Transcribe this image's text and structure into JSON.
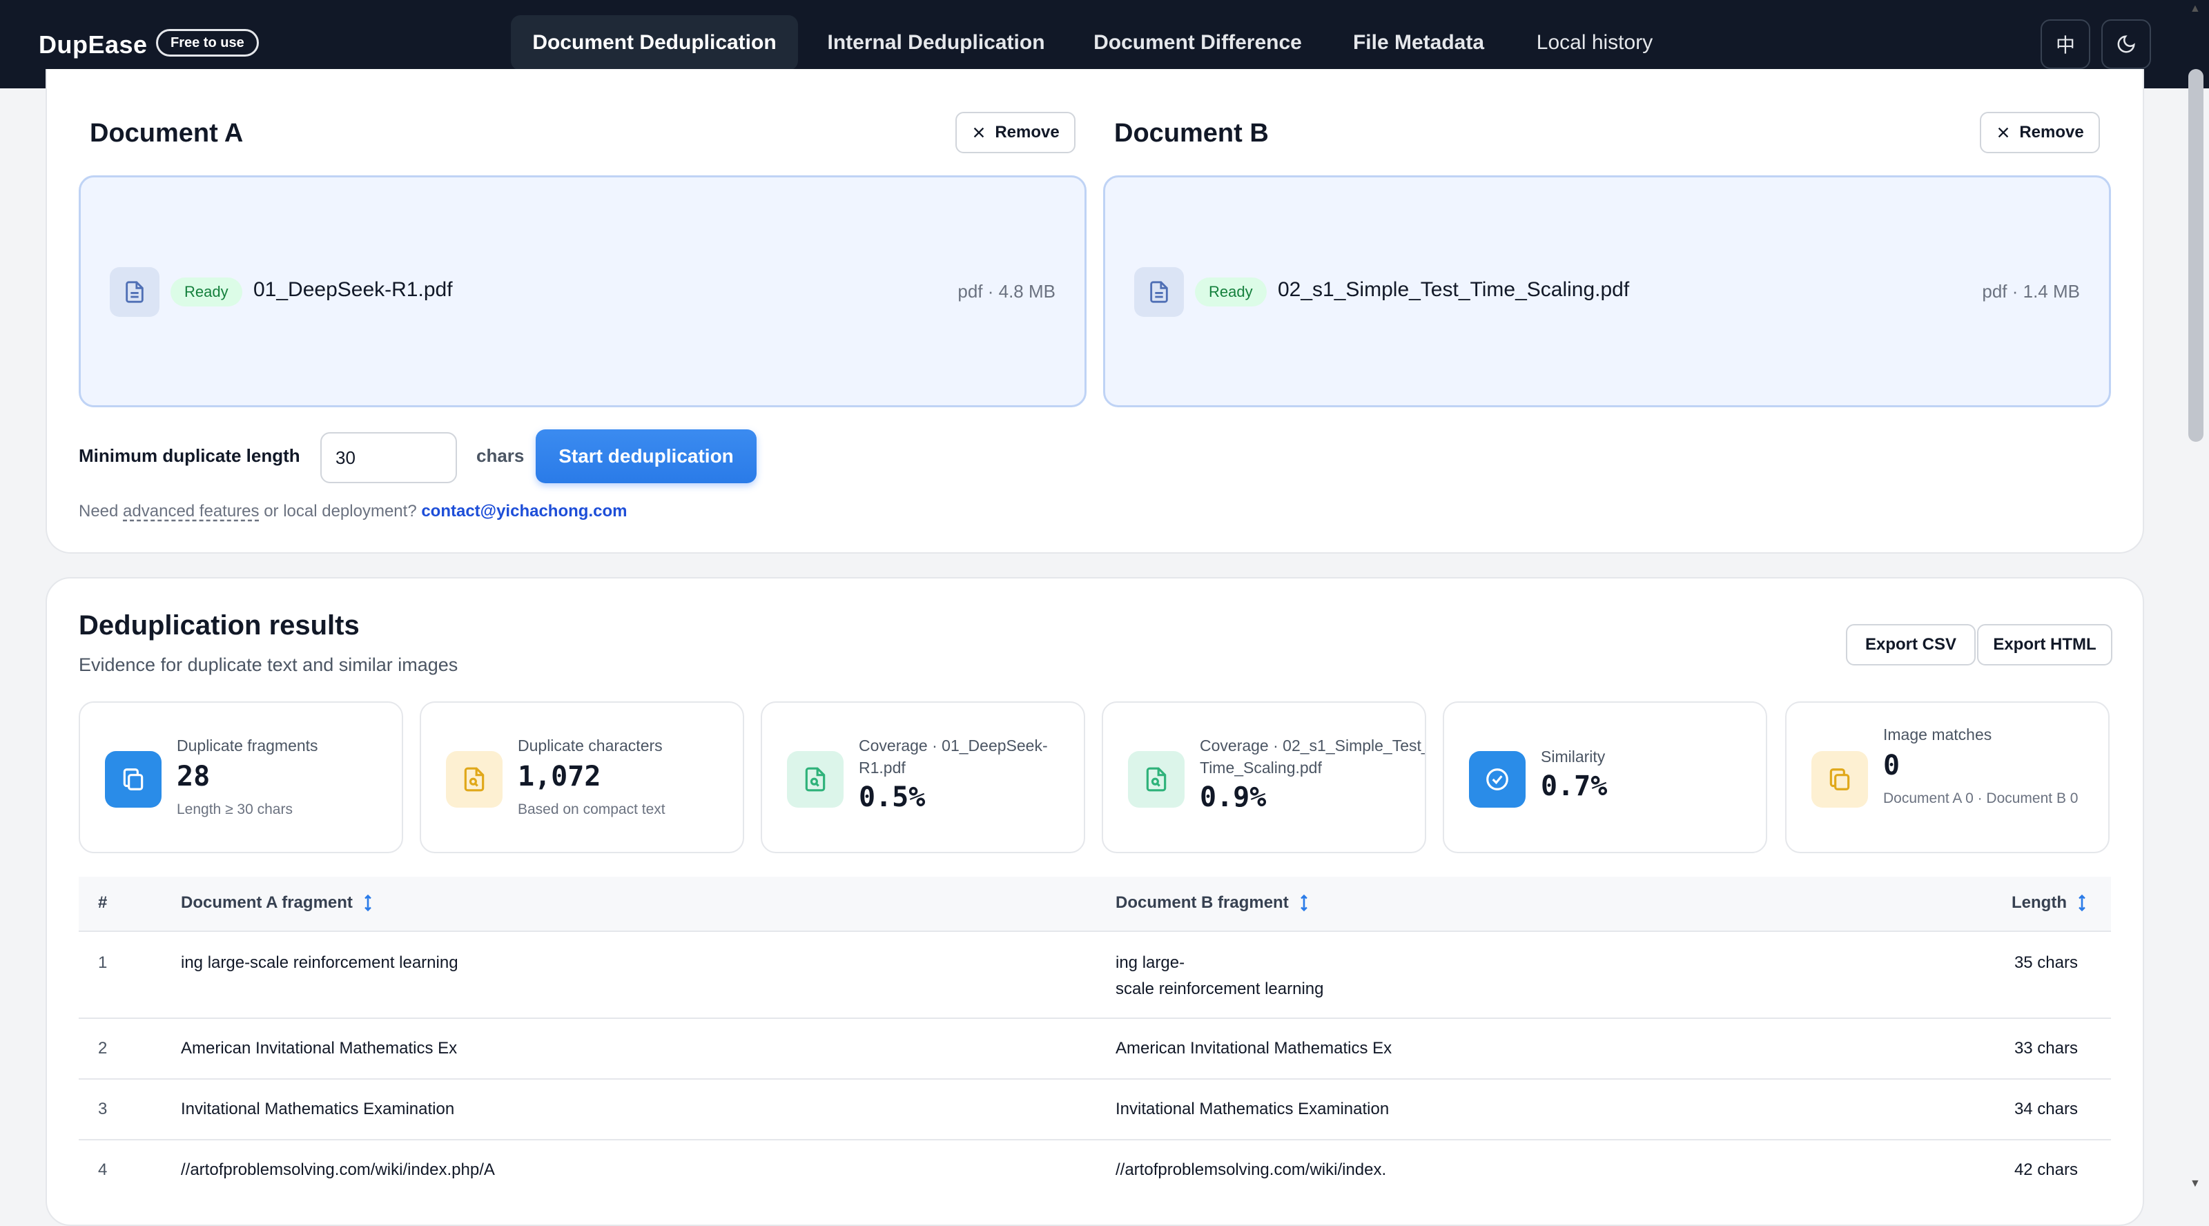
{
  "app": {
    "brand": "DupEase",
    "badge": "Free to use",
    "tabs": [
      "Document Deduplication",
      "Internal Deduplication",
      "Document Difference",
      "File Metadata",
      "Local history"
    ],
    "lang_toggle": "中",
    "colors": {
      "nav_bg": "#111827",
      "accent": "#2a7be8",
      "ready_bg": "#dcfce7",
      "ready_text": "#15803d"
    }
  },
  "docs": {
    "a": {
      "title": "Document A",
      "remove": "Remove",
      "status": "Ready",
      "filename": "01_DeepSeek-R1.pdf",
      "meta": "pdf · 4.8 MB"
    },
    "b": {
      "title": "Document B",
      "remove": "Remove",
      "status": "Ready",
      "filename": "02_s1_Simple_Test_Time_Scaling.pdf",
      "meta": "pdf · 1.4 MB"
    }
  },
  "controls": {
    "min_label": "Minimum duplicate length",
    "min_value": "30",
    "unit": "chars",
    "start": "Start deduplication",
    "help_prefix": "Need ",
    "help_link": "advanced features",
    "help_mid": " or local deployment? ",
    "help_email": "contact@yichachong.com"
  },
  "results": {
    "title": "Deduplication results",
    "subtitle": "Evidence for duplicate text and similar images",
    "export_csv": "Export CSV",
    "export_html": "Export HTML",
    "stats": [
      {
        "label": "Duplicate fragments",
        "value": "28",
        "note": "Length ≥ 30 chars",
        "icon": "copy-icon"
      },
      {
        "label": "Duplicate characters",
        "value": "1,072",
        "note": "Based on compact text",
        "icon": "file-search-icon"
      },
      {
        "label": "Coverage · 01_DeepSeek-R1.pdf",
        "value": "0.5%",
        "note": "",
        "icon": "file-search-icon"
      },
      {
        "label": "Coverage · 02_s1_Simple_Test_Time_Scaling.pdf",
        "value": "0.9%",
        "note": "",
        "icon": "file-search-icon"
      },
      {
        "label": "Similarity",
        "value": "0.7%",
        "note": "",
        "icon": "check-circle-icon"
      },
      {
        "label": "Image matches",
        "value": "0",
        "note": "Document A 0 · Document B 0",
        "icon": "copy-icon"
      }
    ],
    "table": {
      "headers": [
        "#",
        "Document A fragment",
        "Document B fragment",
        "Length"
      ],
      "rows": [
        {
          "n": "1",
          "a": "ing large-scale reinforcement learning",
          "b1": "ing large-",
          "b2": "scale reinforcement learning",
          "len": "35 chars"
        },
        {
          "n": "2",
          "a": "American Invitational Mathematics Ex",
          "b1": "American Invitational Mathematics Ex",
          "b2": "",
          "len": "33 chars"
        },
        {
          "n": "3",
          "a": "Invitational Mathematics Examination",
          "b1": "Invitational Mathematics Examination",
          "b2": "",
          "len": "34 chars"
        },
        {
          "n": "4",
          "a": "//artofproblemsolving.com/wiki/index.php/A",
          "b1": "//artofproblemsolving.com/wiki/index.",
          "b2": "",
          "len": "42 chars"
        }
      ]
    }
  }
}
